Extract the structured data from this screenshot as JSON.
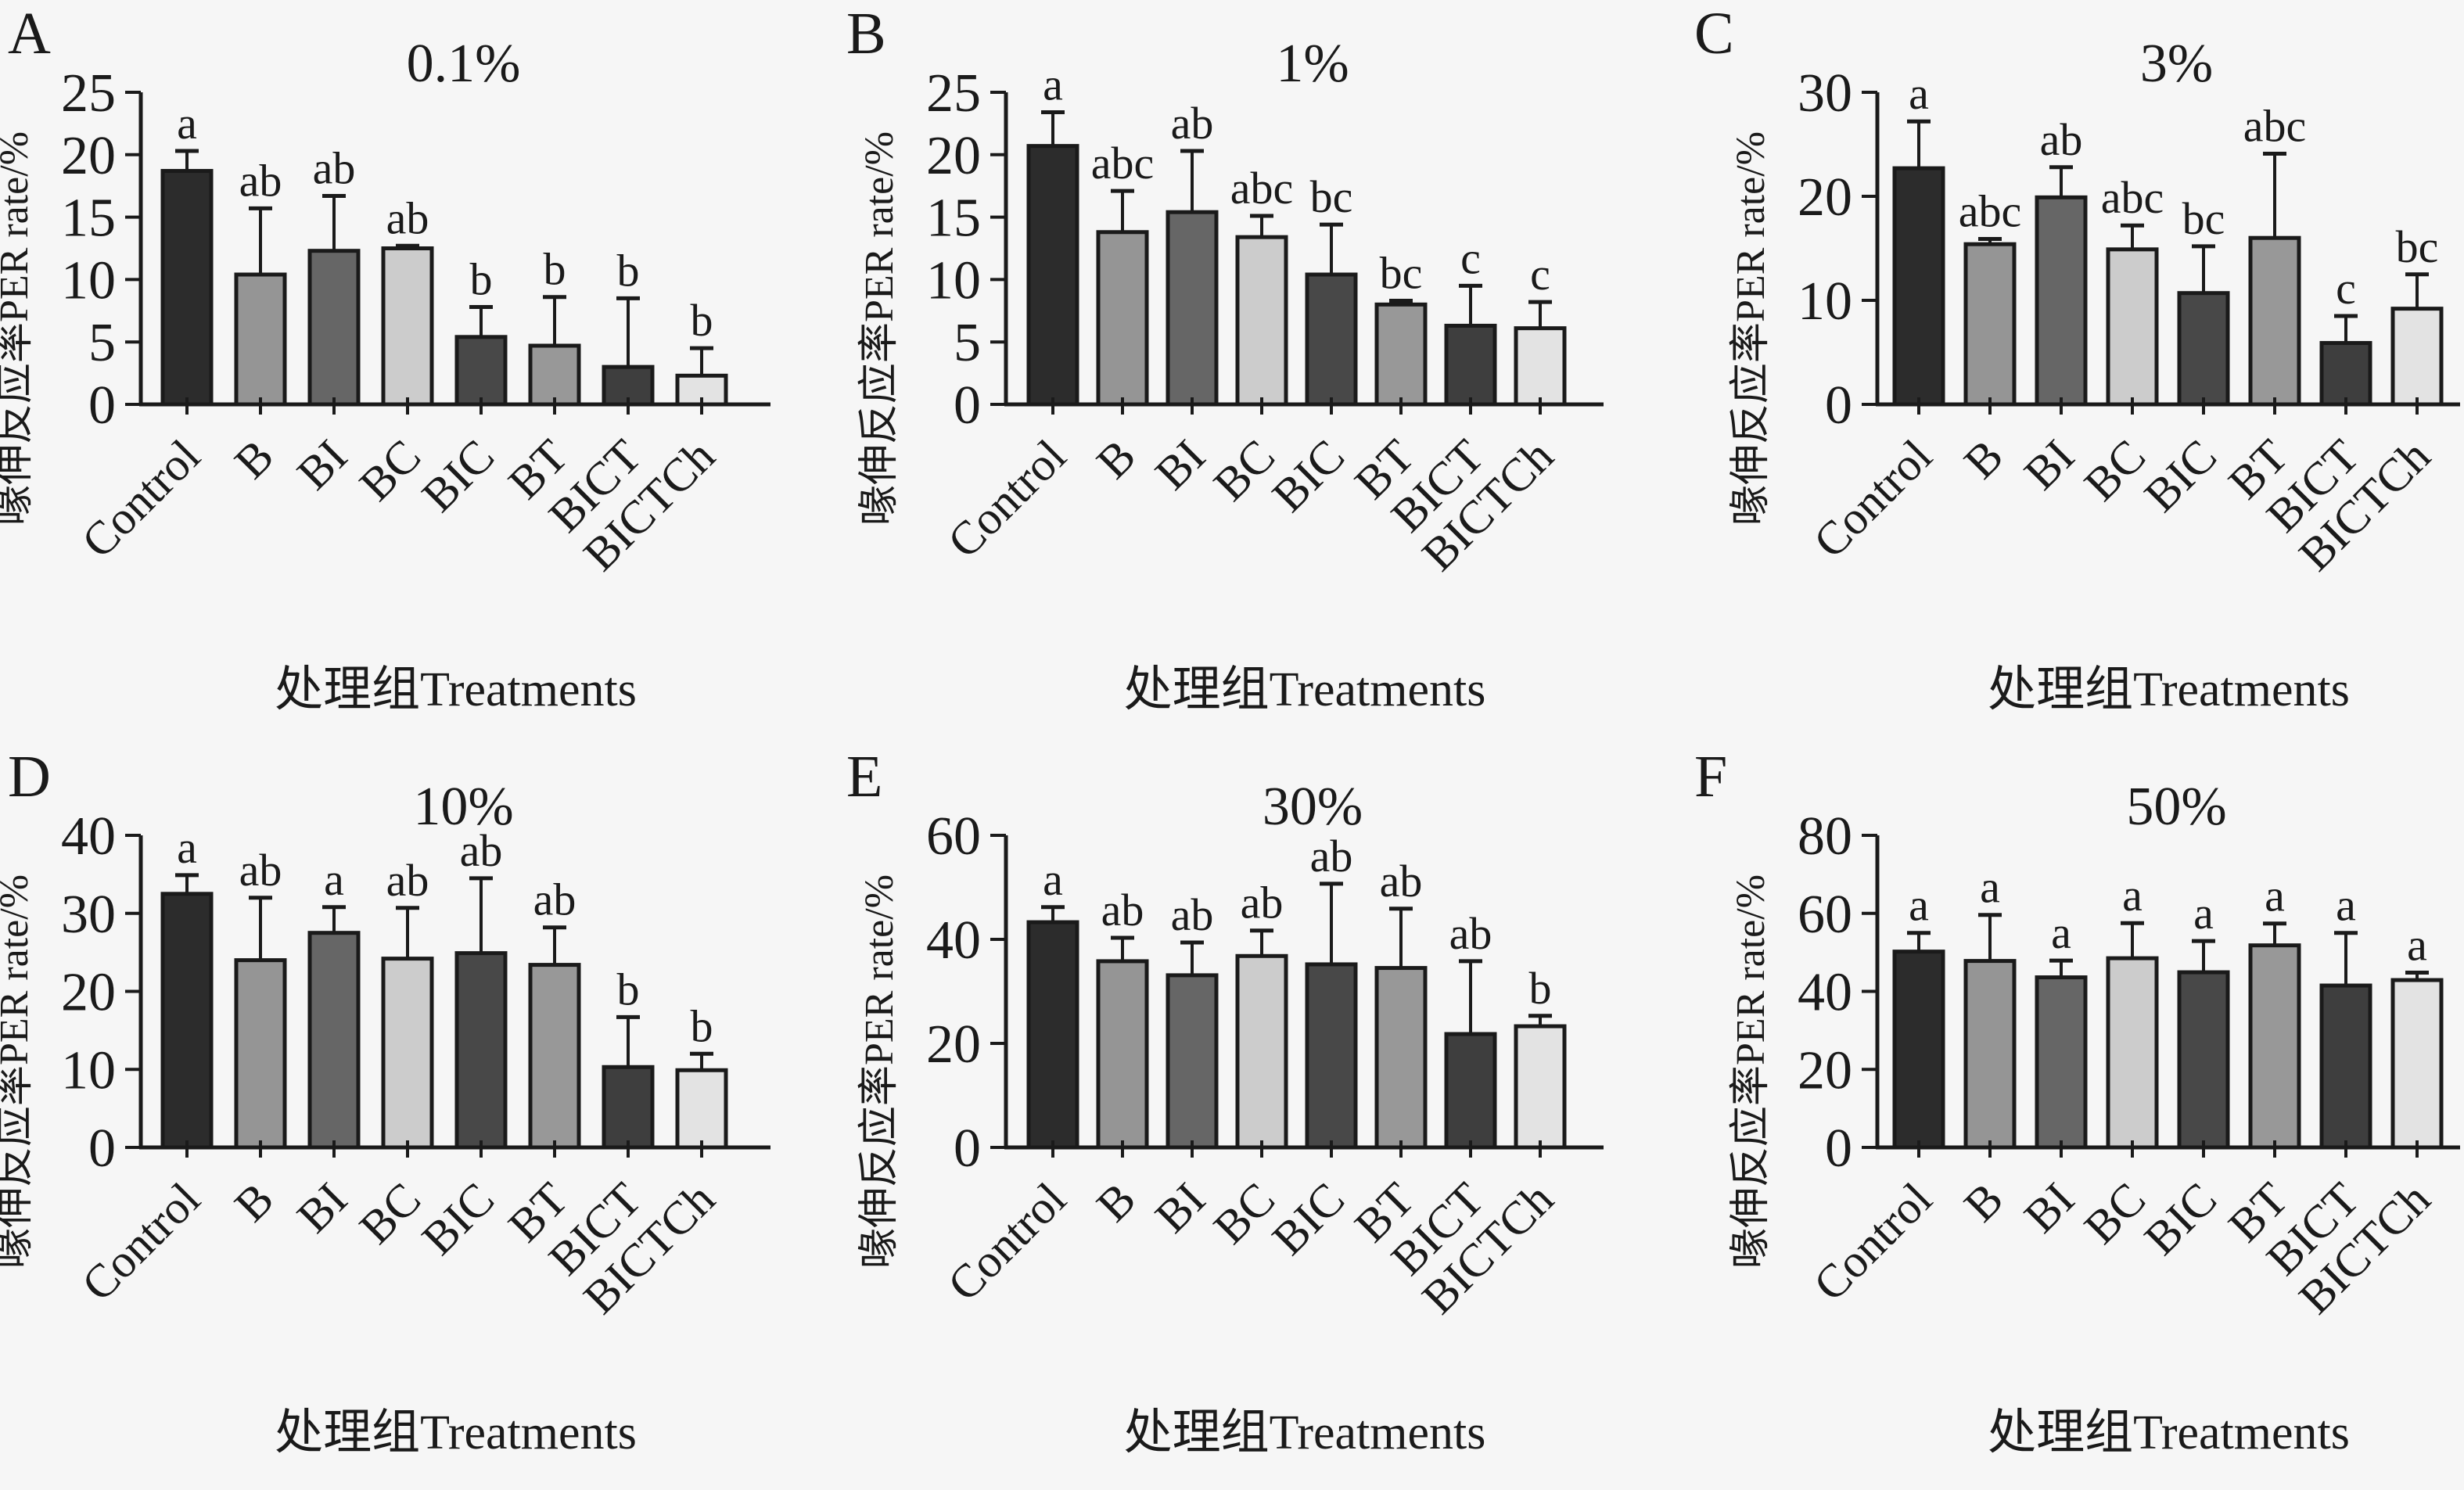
{
  "figure": {
    "ylabel": "喙伸反应率PER rate/%",
    "xlabel": "处理组Treatments",
    "categories": [
      "Control",
      "B",
      "BI",
      "BC",
      "BIC",
      "BT",
      "BICT",
      "BICTCh"
    ],
    "bar_colors": [
      "#2c2c2c",
      "#959595",
      "#666666",
      "#cccccc",
      "#484848",
      "#989898",
      "#3e3e3e",
      "#e3e3e3"
    ],
    "bar_edge_color": "#1a1a1a",
    "axis_color": "#1a1a1a",
    "background_color": "#f6f6f6",
    "panel_letters": [
      "A",
      "B",
      "C",
      "D",
      "E",
      "F"
    ]
  },
  "chart_data": [
    {
      "type": "bar",
      "panel": "A",
      "title": "0.1%",
      "xlabel": "处理组Treatments",
      "ylabel": "喙伸反应率PER rate/%",
      "categories": [
        "Control",
        "B",
        "BI",
        "BC",
        "BIC",
        "BT",
        "BICT",
        "BICTCh"
      ],
      "values": [
        18.7,
        10.4,
        12.3,
        12.5,
        5.4,
        4.7,
        3.0,
        2.3
      ],
      "errors": [
        1.6,
        5.3,
        4.4,
        0.2,
        2.4,
        3.9,
        5.5,
        2.2
      ],
      "sig_letters": [
        "a",
        "ab",
        "ab",
        "ab",
        "b",
        "b",
        "b",
        "b"
      ],
      "ylim": [
        0,
        25
      ],
      "yticks": [
        0,
        5,
        10,
        15,
        20,
        25
      ],
      "grid": false,
      "legend": false
    },
    {
      "type": "bar",
      "panel": "B",
      "title": "1%",
      "xlabel": "处理组Treatments",
      "ylabel": "喙伸反应率PER rate/%",
      "categories": [
        "Control",
        "B",
        "BI",
        "BC",
        "BIC",
        "BT",
        "BICT",
        "BICTCh"
      ],
      "values": [
        20.7,
        13.8,
        15.4,
        13.4,
        10.4,
        8.0,
        6.3,
        6.1
      ],
      "errors": [
        2.7,
        3.3,
        4.9,
        1.7,
        4.0,
        0.3,
        3.2,
        2.1
      ],
      "sig_letters": [
        "a",
        "abc",
        "ab",
        "abc",
        "bc",
        "bc",
        "c",
        "c"
      ],
      "ylim": [
        0,
        25
      ],
      "yticks": [
        0,
        5,
        10,
        15,
        20,
        25
      ],
      "grid": false,
      "legend": false
    },
    {
      "type": "bar",
      "panel": "C",
      "title": "3%",
      "xlabel": "处理组Treatments",
      "ylabel": "喙伸反应率PER rate/%",
      "categories": [
        "Control",
        "B",
        "BI",
        "BC",
        "BIC",
        "BT",
        "BICT",
        "BICTCh"
      ],
      "values": [
        22.7,
        15.4,
        19.9,
        14.9,
        10.7,
        16.0,
        5.9,
        9.2
      ],
      "errors": [
        4.5,
        0.5,
        2.9,
        2.3,
        4.5,
        8.1,
        2.6,
        3.3
      ],
      "sig_letters": [
        "a",
        "abc",
        "ab",
        "abc",
        "bc",
        "abc",
        "c",
        "bc"
      ],
      "ylim": [
        0,
        30
      ],
      "yticks": [
        0,
        10,
        20,
        30
      ],
      "grid": false,
      "legend": false
    },
    {
      "type": "bar",
      "panel": "D",
      "title": "10%",
      "xlabel": "处理组Treatments",
      "ylabel": "喙伸反应率PER rate/%",
      "categories": [
        "Control",
        "B",
        "BI",
        "BC",
        "BIC",
        "BT",
        "BICT",
        "BICTCh"
      ],
      "values": [
        32.5,
        24.0,
        27.5,
        24.2,
        24.9,
        23.4,
        10.3,
        9.9
      ],
      "errors": [
        2.4,
        8.0,
        3.3,
        6.5,
        9.6,
        4.8,
        6.4,
        2.1
      ],
      "sig_letters": [
        "a",
        "ab",
        "a",
        "ab",
        "ab",
        "ab",
        "b",
        "b"
      ],
      "ylim": [
        0,
        40
      ],
      "yticks": [
        0,
        10,
        20,
        30,
        40
      ],
      "grid": false,
      "legend": false
    },
    {
      "type": "bar",
      "panel": "E",
      "title": "30%",
      "xlabel": "处理组Treatments",
      "ylabel": "喙伸反应率PER rate/%",
      "categories": [
        "Control",
        "B",
        "BI",
        "BC",
        "BIC",
        "BT",
        "BICT",
        "BICTCh"
      ],
      "values": [
        43.3,
        35.8,
        33.1,
        36.8,
        35.2,
        34.5,
        21.8,
        23.3
      ],
      "errors": [
        2.9,
        4.5,
        6.3,
        4.9,
        15.5,
        11.4,
        14.0,
        2.0
      ],
      "sig_letters": [
        "a",
        "ab",
        "ab",
        "ab",
        "ab",
        "ab",
        "ab",
        "b"
      ],
      "ylim": [
        0,
        60
      ],
      "yticks": [
        0,
        20,
        40,
        60
      ],
      "grid": false,
      "legend": false
    },
    {
      "type": "bar",
      "panel": "F",
      "title": "50%",
      "xlabel": "处理组Treatments",
      "ylabel": "喙伸反应率PER rate/%",
      "categories": [
        "Control",
        "B",
        "BI",
        "BC",
        "BIC",
        "BT",
        "BICT",
        "BICTCh"
      ],
      "values": [
        50.2,
        47.8,
        43.6,
        48.5,
        44.9,
        51.8,
        41.5,
        42.9
      ],
      "errors": [
        4.8,
        11.8,
        4.3,
        9.0,
        8.0,
        5.6,
        13.5,
        1.9
      ],
      "sig_letters": [
        "a",
        "a",
        "a",
        "a",
        "a",
        "a",
        "a",
        "a"
      ],
      "ylim": [
        0,
        80
      ],
      "yticks": [
        0,
        20,
        40,
        60,
        80
      ],
      "grid": false,
      "legend": false
    }
  ]
}
